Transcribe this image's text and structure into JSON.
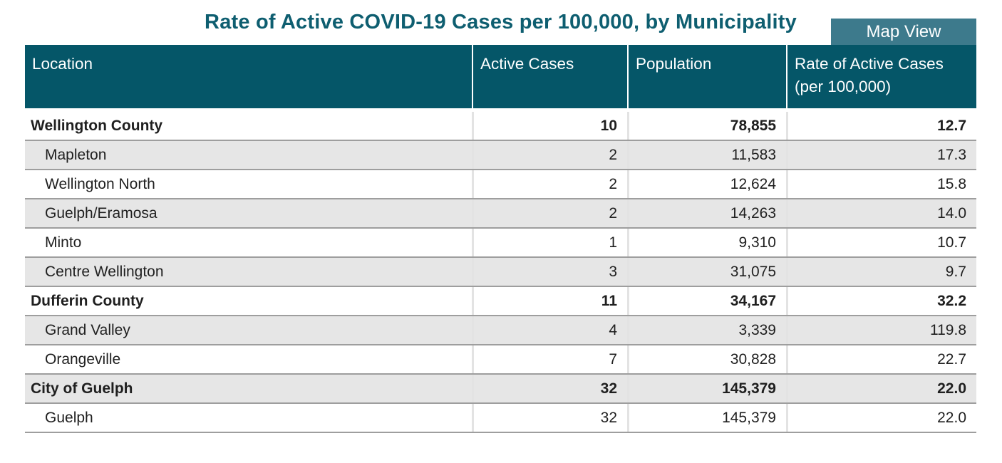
{
  "title": "Rate of Active COVID-19 Cases per 100,000, by Municipality",
  "map_view_button": "Map View",
  "colors": {
    "title_teal": "#0e5e70",
    "header_teal": "#055668",
    "button_teal": "#3d7a8c",
    "shaded_row": "#e6e6e6",
    "row_border": "#9e9e9e"
  },
  "table": {
    "columns": [
      "Location",
      "Active Cases",
      "Population",
      "Rate of Active Cases (per 100,000)"
    ],
    "rows": [
      {
        "location": "Wellington County",
        "active_cases": "10",
        "population": "78,855",
        "rate": "12.7",
        "is_group": true
      },
      {
        "location": "Mapleton",
        "active_cases": "2",
        "population": "11,583",
        "rate": "17.3",
        "is_group": false
      },
      {
        "location": "Wellington North",
        "active_cases": "2",
        "population": "12,624",
        "rate": "15.8",
        "is_group": false
      },
      {
        "location": "Guelph/Eramosa",
        "active_cases": "2",
        "population": "14,263",
        "rate": "14.0",
        "is_group": false
      },
      {
        "location": "Minto",
        "active_cases": "1",
        "population": "9,310",
        "rate": "10.7",
        "is_group": false
      },
      {
        "location": "Centre Wellington",
        "active_cases": "3",
        "population": "31,075",
        "rate": "9.7",
        "is_group": false
      },
      {
        "location": "Dufferin County",
        "active_cases": "11",
        "population": "34,167",
        "rate": "32.2",
        "is_group": true
      },
      {
        "location": "Grand Valley",
        "active_cases": "4",
        "population": "3,339",
        "rate": "119.8",
        "is_group": false
      },
      {
        "location": "Orangeville",
        "active_cases": "7",
        "population": "30,828",
        "rate": "22.7",
        "is_group": false
      },
      {
        "location": "City of Guelph",
        "active_cases": "32",
        "population": "145,379",
        "rate": "22.0",
        "is_group": true
      },
      {
        "location": "Guelph",
        "active_cases": "32",
        "population": "145,379",
        "rate": "22.0",
        "is_group": false
      }
    ]
  }
}
